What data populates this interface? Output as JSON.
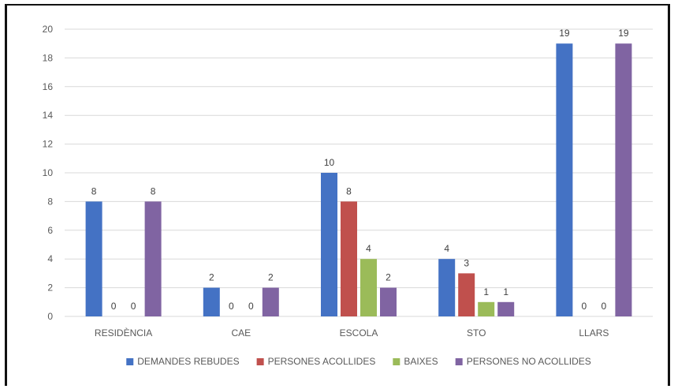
{
  "chart_data": {
    "type": "bar",
    "categories": [
      "RESIDÈNCIA",
      "CAE",
      "ESCOLA",
      "STO",
      "LLARS"
    ],
    "series": [
      {
        "name": "DEMANDES REBUDES",
        "color": "#4472C4",
        "values": [
          8,
          2,
          10,
          4,
          19
        ]
      },
      {
        "name": "PERSONES ACOLLIDES",
        "color": "#C0504D",
        "values": [
          0,
          0,
          8,
          3,
          0
        ]
      },
      {
        "name": "BAIXES",
        "color": "#9BBB59",
        "values": [
          0,
          0,
          4,
          1,
          0
        ]
      },
      {
        "name": "PERSONES NO ACOLLIDES",
        "color": "#8064A2",
        "values": [
          8,
          2,
          2,
          1,
          19
        ]
      }
    ],
    "ylim": [
      0,
      20
    ],
    "yticks": [
      0,
      2,
      4,
      6,
      8,
      10,
      12,
      14,
      16,
      18,
      20
    ],
    "grid": true,
    "data_labels": true,
    "legend": "bottom"
  }
}
